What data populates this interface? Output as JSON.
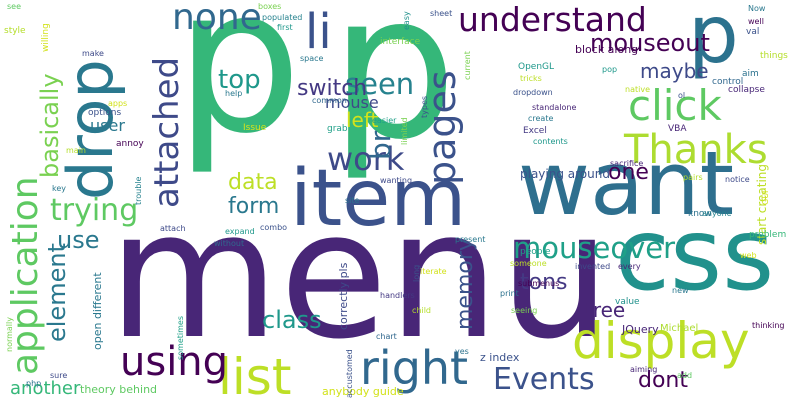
{
  "words": [
    {
      "text": "p",
      "color": "#35b779"
    },
    {
      "text": "p",
      "color": "#35b779"
    },
    {
      "text": "menu",
      "color": "#482677"
    },
    {
      "text": "item",
      "color": "#3b528b"
    },
    {
      "text": "want",
      "color": "#2e6f8e"
    },
    {
      "text": "css",
      "color": "#21918c"
    },
    {
      "text": "drop",
      "color": "#2a788e"
    },
    {
      "text": "p",
      "color": "#2c728e"
    },
    {
      "text": "application",
      "color": "#5ec962"
    },
    {
      "text": "list",
      "color": "#bddf26"
    },
    {
      "text": "display",
      "color": "#bddf26"
    },
    {
      "text": "click",
      "color": "#5ec962"
    },
    {
      "text": "right",
      "color": "#31688e"
    },
    {
      "text": "using",
      "color": "#440154"
    },
    {
      "text": "understand",
      "color": "#440154"
    },
    {
      "text": "pages",
      "color": "#3b528b"
    },
    {
      "text": "Thanks",
      "color": "#addc30"
    },
    {
      "text": "attached",
      "color": "#3e4a89"
    },
    {
      "text": "li",
      "color": "#3b528b"
    },
    {
      "text": "none",
      "color": "#31688e"
    },
    {
      "text": "trying",
      "color": "#5ec962"
    },
    {
      "text": "mouseover",
      "color": "#1fa088"
    },
    {
      "text": "work",
      "color": "#3e4a89"
    },
    {
      "text": "seen",
      "color": "#26828e"
    },
    {
      "text": "Events",
      "color": "#3b528b"
    },
    {
      "text": "basically",
      "color": "#7ad151"
    },
    {
      "text": "mouseout",
      "color": "#440154"
    },
    {
      "text": "br",
      "color": "#31688e"
    },
    {
      "text": "one",
      "color": "#440154"
    },
    {
      "text": "element",
      "color": "#2a788e"
    },
    {
      "text": "class",
      "color": "#1f988b"
    },
    {
      "text": "maybe",
      "color": "#3e4a89"
    },
    {
      "text": "switch",
      "color": "#443983"
    },
    {
      "text": "data",
      "color": "#bddf26"
    },
    {
      "text": "memory",
      "color": "#3b528b"
    },
    {
      "text": "form",
      "color": "#2a788e"
    },
    {
      "text": "top",
      "color": "#1f988b"
    },
    {
      "text": "tons",
      "color": "#443983"
    },
    {
      "text": "use",
      "color": "#2a788e"
    },
    {
      "text": "tree",
      "color": "#482677"
    },
    {
      "text": "left",
      "color": "#d2e21b"
    },
    {
      "text": "dont",
      "color": "#440154"
    },
    {
      "text": "another",
      "color": "#35b779"
    },
    {
      "text": "mouse",
      "color": "#3e4a89"
    },
    {
      "text": "user",
      "color": "#2a788e"
    },
    {
      "text": "block along",
      "color": "#440154"
    },
    {
      "text": "playing around",
      "color": "#3b528b"
    },
    {
      "text": "start creating",
      "color": "#bddf26"
    },
    {
      "text": "theory behind",
      "color": "#5ec962"
    },
    {
      "text": "anybody guide",
      "color": "#d2e21b"
    },
    {
      "text": "z index",
      "color": "#3b528b"
    },
    {
      "text": "open different",
      "color": "#2a788e"
    },
    {
      "text": "correctly pls",
      "color": "#3e4a89"
    },
    {
      "text": "JQuery",
      "color": "#482677"
    },
    {
      "text": "Michael",
      "color": "#addc30"
    },
    {
      "text": "Excel",
      "color": "#443983"
    },
    {
      "text": "OpenGL",
      "color": "#1f988b"
    },
    {
      "text": "VBA",
      "color": "#482677"
    },
    {
      "text": "aim",
      "color": "#2c728e"
    },
    {
      "text": "control",
      "color": "#31688e"
    },
    {
      "text": "collapse",
      "color": "#482677"
    },
    {
      "text": "options",
      "color": "#3b528b"
    },
    {
      "text": "annoy",
      "color": "#440154"
    },
    {
      "text": "Issue",
      "color": "#d2e21b"
    },
    {
      "text": "help",
      "color": "#2a788e"
    },
    {
      "text": "common",
      "color": "#31688e"
    },
    {
      "text": "grab",
      "color": "#1fa088"
    },
    {
      "text": "easier",
      "color": "#1fa088"
    },
    {
      "text": "interface",
      "color": "#7ad151"
    },
    {
      "text": "space",
      "color": "#2a788e"
    },
    {
      "text": "populated",
      "color": "#26828e"
    },
    {
      "text": "first",
      "color": "#1f988b"
    },
    {
      "text": "boxes",
      "color": "#7ad151"
    },
    {
      "text": "sheet",
      "color": "#3b528b"
    },
    {
      "text": "Now",
      "color": "#2a788e"
    },
    {
      "text": "well",
      "color": "#440154"
    },
    {
      "text": "val",
      "color": "#3b528b"
    },
    {
      "text": "things",
      "color": "#b5de2b"
    },
    {
      "text": "pop",
      "color": "#1f988b"
    },
    {
      "text": "native",
      "color": "#bddf26"
    },
    {
      "text": "ol",
      "color": "#3b528b"
    },
    {
      "text": "tricks",
      "color": "#bddf26"
    },
    {
      "text": "dropdown",
      "color": "#3b528b"
    },
    {
      "text": "standalone",
      "color": "#482677"
    },
    {
      "text": "create",
      "color": "#2a788e"
    },
    {
      "text": "contents",
      "color": "#1f988b"
    },
    {
      "text": "sacrifice",
      "color": "#482677"
    },
    {
      "text": "pairs",
      "color": "#b5de2b"
    },
    {
      "text": "notice",
      "color": "#3e4a89"
    },
    {
      "text": "know",
      "color": "#2c728e"
    },
    {
      "text": "anyone",
      "color": "#26828e"
    },
    {
      "text": "problem",
      "color": "#35b779"
    },
    {
      "text": "web",
      "color": "#d2e21b"
    },
    {
      "text": "GUI",
      "color": "#d2e21b"
    },
    {
      "text": "add",
      "color": "#5ec962"
    },
    {
      "text": "new",
      "color": "#2a788e"
    },
    {
      "text": "thinking",
      "color": "#440154"
    },
    {
      "text": "aiming",
      "color": "#482677"
    },
    {
      "text": "yes",
      "color": "#2c728e"
    },
    {
      "text": "value",
      "color": "#21918c"
    },
    {
      "text": "invented",
      "color": "#3e4a89"
    },
    {
      "text": "every",
      "color": "#482677"
    },
    {
      "text": "people",
      "color": "#1fa088"
    },
    {
      "text": "someone",
      "color": "#bddf26"
    },
    {
      "text": "submenus",
      "color": "#440154"
    },
    {
      "text": "seeing",
      "color": "#7ad151"
    },
    {
      "text": "print",
      "color": "#2c728e"
    },
    {
      "text": "long",
      "color": "#3b528b"
    },
    {
      "text": "handlers",
      "color": "#443983"
    },
    {
      "text": "child",
      "color": "#b5de2b"
    },
    {
      "text": "chart",
      "color": "#31688e"
    },
    {
      "text": "iterate",
      "color": "#d2e21b"
    },
    {
      "text": "present",
      "color": "#2a788e"
    },
    {
      "text": "wanting",
      "color": "#3e4a89"
    },
    {
      "text": "site",
      "color": "#2c728e"
    },
    {
      "text": "combo",
      "color": "#3b528b"
    },
    {
      "text": "expand",
      "color": "#1f988b"
    },
    {
      "text": "without",
      "color": "#31688e"
    },
    {
      "text": "attach",
      "color": "#3e4a89"
    },
    {
      "text": "trouble",
      "color": "#26828e"
    },
    {
      "text": "key",
      "color": "#2a788e"
    },
    {
      "text": "make",
      "color": "#3e4a89"
    },
    {
      "text": "apps",
      "color": "#d2e21b"
    },
    {
      "text": "main",
      "color": "#b5de2b"
    },
    {
      "text": "sometimes",
      "color": "#1fa088"
    },
    {
      "text": "accustomed",
      "color": "#3b528b"
    },
    {
      "text": "sure",
      "color": "#3e4a89"
    },
    {
      "text": "php",
      "color": "#2c728e"
    },
    {
      "text": "normally",
      "color": "#7ad151"
    },
    {
      "text": "willing",
      "color": "#d2e21b"
    },
    {
      "text": "style",
      "color": "#b5de2b"
    },
    {
      "text": "see",
      "color": "#5ec962"
    },
    {
      "text": "easy",
      "color": "#21918c"
    },
    {
      "text": "limited",
      "color": "#7ad151"
    },
    {
      "text": "types",
      "color": "#3b528b"
    },
    {
      "text": "current",
      "color": "#7ad151"
    }
  ]
}
